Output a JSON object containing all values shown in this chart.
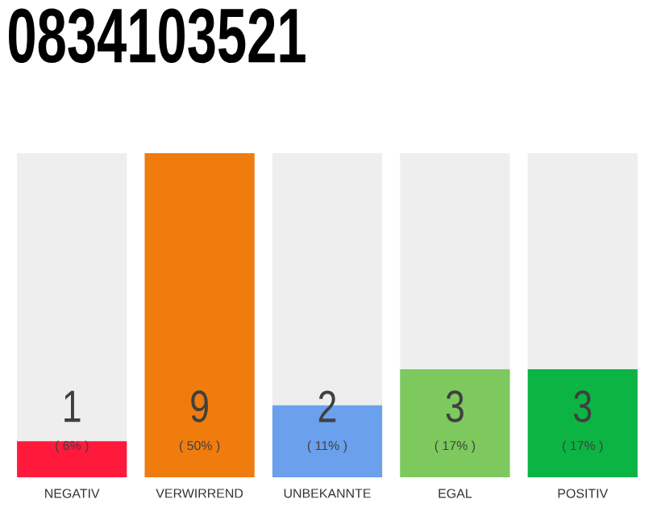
{
  "chart_data": {
    "type": "bar",
    "title": "0834103521",
    "categories": [
      "NEGATIV",
      "VERWIRREND",
      "UNBEKANNTE",
      "EGAL",
      "POSITIV"
    ],
    "values": [
      1,
      9,
      2,
      3,
      3
    ],
    "colors": [
      "#ff1a3c",
      "#f07c0e",
      "#6aa0ec",
      "#7ec95e",
      "#0cb444"
    ],
    "data_labels": true,
    "annotations": [
      "( 6% )",
      "( 50% )",
      "( 11% )",
      "( 17% )",
      "( 17% )"
    ]
  }
}
